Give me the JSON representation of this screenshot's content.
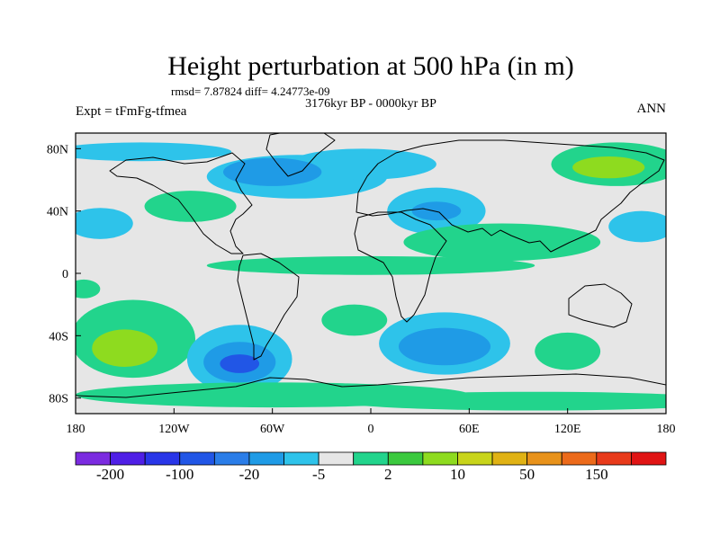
{
  "chart_data": {
    "type": "heatmap",
    "title": "Height perturbation at 500 hPa (in m)",
    "stats_text": "rmsd= 7.87824 diff= 4.24773e-09",
    "subtitle": "3176kyr BP - 0000kyr BP",
    "left_label": "Expt = tFmFg-tfmea",
    "right_label": "ANN",
    "x_axis": {
      "range": [
        -180,
        180
      ],
      "ticks": [
        -180,
        -120,
        -60,
        0,
        60,
        120,
        180
      ],
      "tick_labels": [
        "180",
        "120W",
        "60W",
        "0",
        "60E",
        "120E",
        "180"
      ]
    },
    "y_axis": {
      "range": [
        -90,
        90
      ],
      "ticks": [
        80,
        40,
        0,
        -40,
        -80
      ],
      "tick_labels": [
        "80N",
        "40N",
        "0",
        "40S",
        "80S"
      ]
    },
    "colorbar": {
      "colors": [
        "#7b2be0",
        "#4f1fe6",
        "#2936e8",
        "#2156e6",
        "#2a7de8",
        "#1f9be6",
        "#2ec3ea",
        "#e6e6e6",
        "#22d48c",
        "#3bc93e",
        "#8edb1f",
        "#c8d41a",
        "#e0b214",
        "#e8921a",
        "#ec6a1a",
        "#e83a1a",
        "#e01414"
      ],
      "labels": [
        "-200",
        "-100",
        "-20",
        "-5",
        "2",
        "10",
        "50",
        "150"
      ]
    },
    "anomalies": [
      {
        "lon": -110,
        "lat": 43,
        "a": 28,
        "b": 10,
        "level": 1
      },
      {
        "lon": -45,
        "lat": 62,
        "a": 55,
        "b": 14,
        "level": -1
      },
      {
        "lon": -60,
        "lat": 65,
        "a": 30,
        "b": 9,
        "level": -2
      },
      {
        "lon": -5,
        "lat": 70,
        "a": 45,
        "b": 10,
        "level": -1
      },
      {
        "lon": -140,
        "lat": 78,
        "a": 55,
        "b": 6,
        "level": -1
      },
      {
        "lon": 150,
        "lat": 70,
        "a": 40,
        "b": 14,
        "level": 1
      },
      {
        "lon": 145,
        "lat": 68,
        "a": 22,
        "b": 7,
        "level": 2
      },
      {
        "lon": 40,
        "lat": 40,
        "a": 30,
        "b": 15,
        "level": -1
      },
      {
        "lon": 40,
        "lat": 40,
        "a": 15,
        "b": 6,
        "level": -2
      },
      {
        "lon": 80,
        "lat": 20,
        "a": 60,
        "b": 12,
        "level": 1
      },
      {
        "lon": -165,
        "lat": 32,
        "a": 20,
        "b": 10,
        "level": -1
      },
      {
        "lon": 165,
        "lat": 30,
        "a": 20,
        "b": 10,
        "level": -1
      },
      {
        "lon": -145,
        "lat": -42,
        "a": 38,
        "b": 25,
        "level": 1
      },
      {
        "lon": -150,
        "lat": -48,
        "a": 20,
        "b": 12,
        "level": 2
      },
      {
        "lon": -80,
        "lat": -55,
        "a": 32,
        "b": 22,
        "level": -1
      },
      {
        "lon": -80,
        "lat": -57,
        "a": 22,
        "b": 13,
        "level": -2
      },
      {
        "lon": -80,
        "lat": -58,
        "a": 12,
        "b": 6,
        "level": -3
      },
      {
        "lon": 45,
        "lat": -45,
        "a": 40,
        "b": 20,
        "level": -1
      },
      {
        "lon": 45,
        "lat": -47,
        "a": 28,
        "b": 12,
        "level": -2
      },
      {
        "lon": 120,
        "lat": -50,
        "a": 20,
        "b": 12,
        "level": 1
      },
      {
        "lon": -10,
        "lat": -30,
        "a": 20,
        "b": 10,
        "level": 1
      },
      {
        "lon": 0,
        "lat": 5,
        "a": 100,
        "b": 6,
        "level": 1
      },
      {
        "lon": -60,
        "lat": -78,
        "a": 120,
        "b": 8,
        "level": 1
      },
      {
        "lon": 100,
        "lat": -82,
        "a": 120,
        "b": 6,
        "level": 1
      },
      {
        "lon": -175,
        "lat": -10,
        "a": 10,
        "b": 6,
        "level": 1
      }
    ]
  }
}
